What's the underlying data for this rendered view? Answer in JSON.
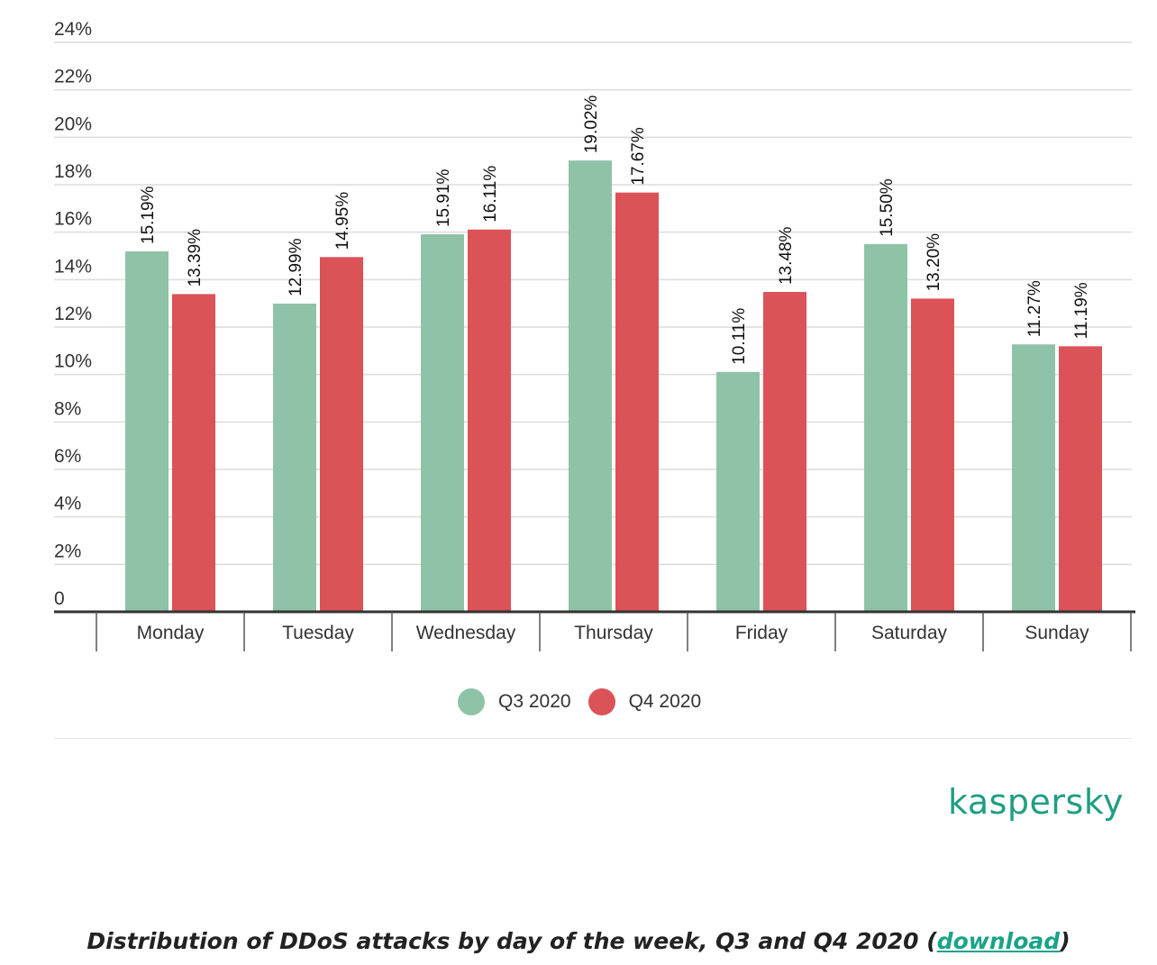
{
  "chart_data": {
    "type": "bar",
    "categories": [
      "Monday",
      "Tuesday",
      "Wednesday",
      "Thursday",
      "Friday",
      "Saturday",
      "Sunday"
    ],
    "series": [
      {
        "name": "Q3 2020",
        "color": "#8fc3a8",
        "values": [
          15.19,
          12.99,
          15.91,
          19.02,
          10.11,
          15.5,
          11.27
        ],
        "labels": [
          "15.19%",
          "12.99%",
          "15.91%",
          "19.02%",
          "10.11%",
          "15.50%",
          "11.27%"
        ]
      },
      {
        "name": "Q4 2020",
        "color": "#db5257",
        "values": [
          13.39,
          14.95,
          16.11,
          17.67,
          13.48,
          13.2,
          11.19
        ],
        "labels": [
          "13.39%",
          "14.95%",
          "16.11%",
          "17.67%",
          "13.48%",
          "13.20%",
          "11.19%"
        ]
      }
    ],
    "ylim": [
      0,
      24
    ],
    "yticks": [
      "0",
      "2%",
      "4%",
      "6%",
      "8%",
      "10%",
      "12%",
      "14%",
      "16%",
      "18%",
      "20%",
      "22%",
      "24%"
    ],
    "grid": true,
    "legend_position": "bottom-center"
  },
  "brand": {
    "logo_text": "kaspersky",
    "logo_color": "#1f9e82"
  },
  "caption": {
    "text_before": "Distribution of DDoS attacks by day of the week, Q3 and Q4 2020 (",
    "link": "download",
    "text_after": ")",
    "link_color": "#1aa389"
  }
}
